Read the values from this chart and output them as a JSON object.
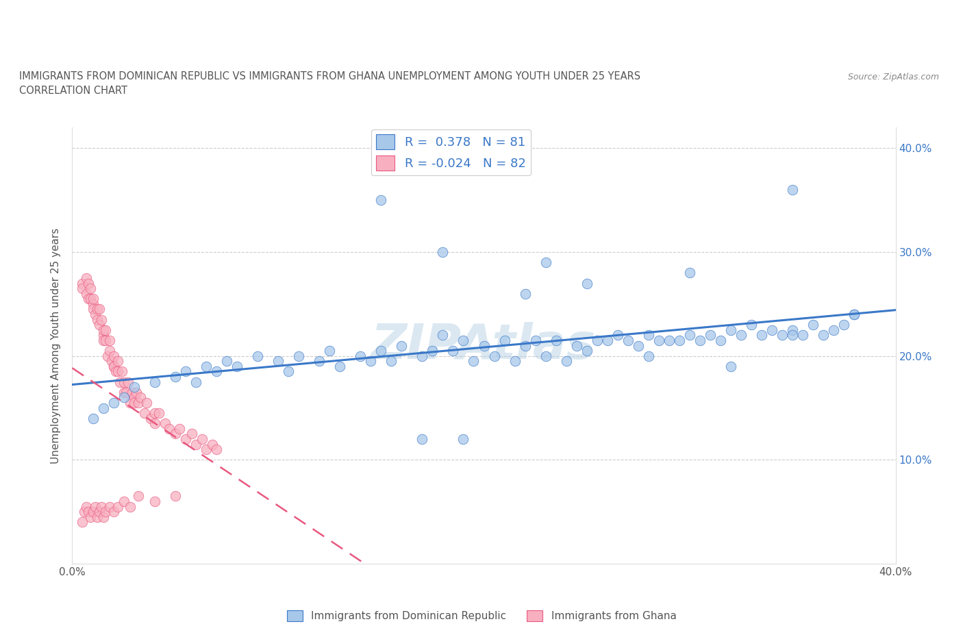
{
  "title_line1": "IMMIGRANTS FROM DOMINICAN REPUBLIC VS IMMIGRANTS FROM GHANA UNEMPLOYMENT AMONG YOUTH UNDER 25 YEARS",
  "title_line2": "CORRELATION CHART",
  "source": "Source: ZipAtlas.com",
  "ylabel": "Unemployment Among Youth under 25 years",
  "xlim": [
    0.0,
    0.4
  ],
  "ylim": [
    0.0,
    0.42
  ],
  "color_blue": "#a8c8ea",
  "color_pink": "#f8b0c0",
  "line_blue": "#3a78c8",
  "line_pink": "#e85880",
  "R_blue": 0.378,
  "N_blue": 81,
  "R_pink": -0.024,
  "N_pink": 82,
  "legend_label_blue": "Immigrants from Dominican Republic",
  "legend_label_pink": "Immigrants from Ghana",
  "watermark": "ZIPAtlas",
  "background_color": "#ffffff",
  "grid_color": "#cccccc",
  "blue_x": [
    0.01,
    0.015,
    0.02,
    0.025,
    0.03,
    0.04,
    0.05,
    0.055,
    0.06,
    0.065,
    0.07,
    0.075,
    0.08,
    0.09,
    0.1,
    0.105,
    0.11,
    0.12,
    0.125,
    0.13,
    0.14,
    0.145,
    0.15,
    0.155,
    0.16,
    0.17,
    0.175,
    0.18,
    0.185,
    0.19,
    0.195,
    0.2,
    0.205,
    0.21,
    0.215,
    0.22,
    0.225,
    0.23,
    0.235,
    0.24,
    0.245,
    0.25,
    0.255,
    0.26,
    0.265,
    0.27,
    0.275,
    0.28,
    0.285,
    0.29,
    0.295,
    0.3,
    0.305,
    0.31,
    0.315,
    0.32,
    0.325,
    0.33,
    0.335,
    0.34,
    0.345,
    0.35,
    0.355,
    0.36,
    0.365,
    0.37,
    0.375,
    0.38,
    0.23,
    0.18,
    0.15,
    0.25,
    0.3,
    0.22,
    0.19,
    0.17,
    0.28,
    0.35,
    0.38,
    0.35,
    0.32
  ],
  "blue_y": [
    0.14,
    0.15,
    0.155,
    0.16,
    0.17,
    0.175,
    0.18,
    0.185,
    0.175,
    0.19,
    0.185,
    0.195,
    0.19,
    0.2,
    0.195,
    0.185,
    0.2,
    0.195,
    0.205,
    0.19,
    0.2,
    0.195,
    0.205,
    0.195,
    0.21,
    0.2,
    0.205,
    0.22,
    0.205,
    0.215,
    0.195,
    0.21,
    0.2,
    0.215,
    0.195,
    0.21,
    0.215,
    0.2,
    0.215,
    0.195,
    0.21,
    0.205,
    0.215,
    0.215,
    0.22,
    0.215,
    0.21,
    0.22,
    0.215,
    0.215,
    0.215,
    0.22,
    0.215,
    0.22,
    0.215,
    0.225,
    0.22,
    0.23,
    0.22,
    0.225,
    0.22,
    0.225,
    0.22,
    0.23,
    0.22,
    0.225,
    0.23,
    0.24,
    0.29,
    0.3,
    0.35,
    0.27,
    0.28,
    0.26,
    0.12,
    0.12,
    0.2,
    0.22,
    0.24,
    0.36,
    0.19
  ],
  "pink_x": [
    0.005,
    0.005,
    0.007,
    0.007,
    0.008,
    0.008,
    0.009,
    0.009,
    0.01,
    0.01,
    0.01,
    0.011,
    0.012,
    0.012,
    0.013,
    0.013,
    0.014,
    0.015,
    0.015,
    0.015,
    0.016,
    0.016,
    0.017,
    0.018,
    0.018,
    0.019,
    0.02,
    0.02,
    0.02,
    0.021,
    0.022,
    0.022,
    0.023,
    0.024,
    0.025,
    0.025,
    0.026,
    0.027,
    0.028,
    0.029,
    0.03,
    0.03,
    0.031,
    0.032,
    0.033,
    0.035,
    0.036,
    0.038,
    0.04,
    0.04,
    0.042,
    0.045,
    0.047,
    0.05,
    0.052,
    0.055,
    0.058,
    0.06,
    0.063,
    0.065,
    0.068,
    0.07,
    0.005,
    0.006,
    0.007,
    0.008,
    0.009,
    0.01,
    0.011,
    0.012,
    0.013,
    0.014,
    0.015,
    0.016,
    0.018,
    0.02,
    0.022,
    0.025,
    0.028,
    0.032,
    0.04,
    0.05
  ],
  "pink_y": [
    0.27,
    0.265,
    0.275,
    0.26,
    0.255,
    0.27,
    0.255,
    0.265,
    0.25,
    0.245,
    0.255,
    0.24,
    0.245,
    0.235,
    0.245,
    0.23,
    0.235,
    0.22,
    0.225,
    0.215,
    0.215,
    0.225,
    0.2,
    0.215,
    0.205,
    0.195,
    0.19,
    0.2,
    0.19,
    0.185,
    0.185,
    0.195,
    0.175,
    0.185,
    0.175,
    0.165,
    0.165,
    0.175,
    0.155,
    0.165,
    0.16,
    0.155,
    0.165,
    0.155,
    0.16,
    0.145,
    0.155,
    0.14,
    0.145,
    0.135,
    0.145,
    0.135,
    0.13,
    0.125,
    0.13,
    0.12,
    0.125,
    0.115,
    0.12,
    0.11,
    0.115,
    0.11,
    0.04,
    0.05,
    0.055,
    0.05,
    0.045,
    0.05,
    0.055,
    0.045,
    0.05,
    0.055,
    0.045,
    0.05,
    0.055,
    0.05,
    0.055,
    0.06,
    0.055,
    0.065,
    0.06,
    0.065
  ]
}
